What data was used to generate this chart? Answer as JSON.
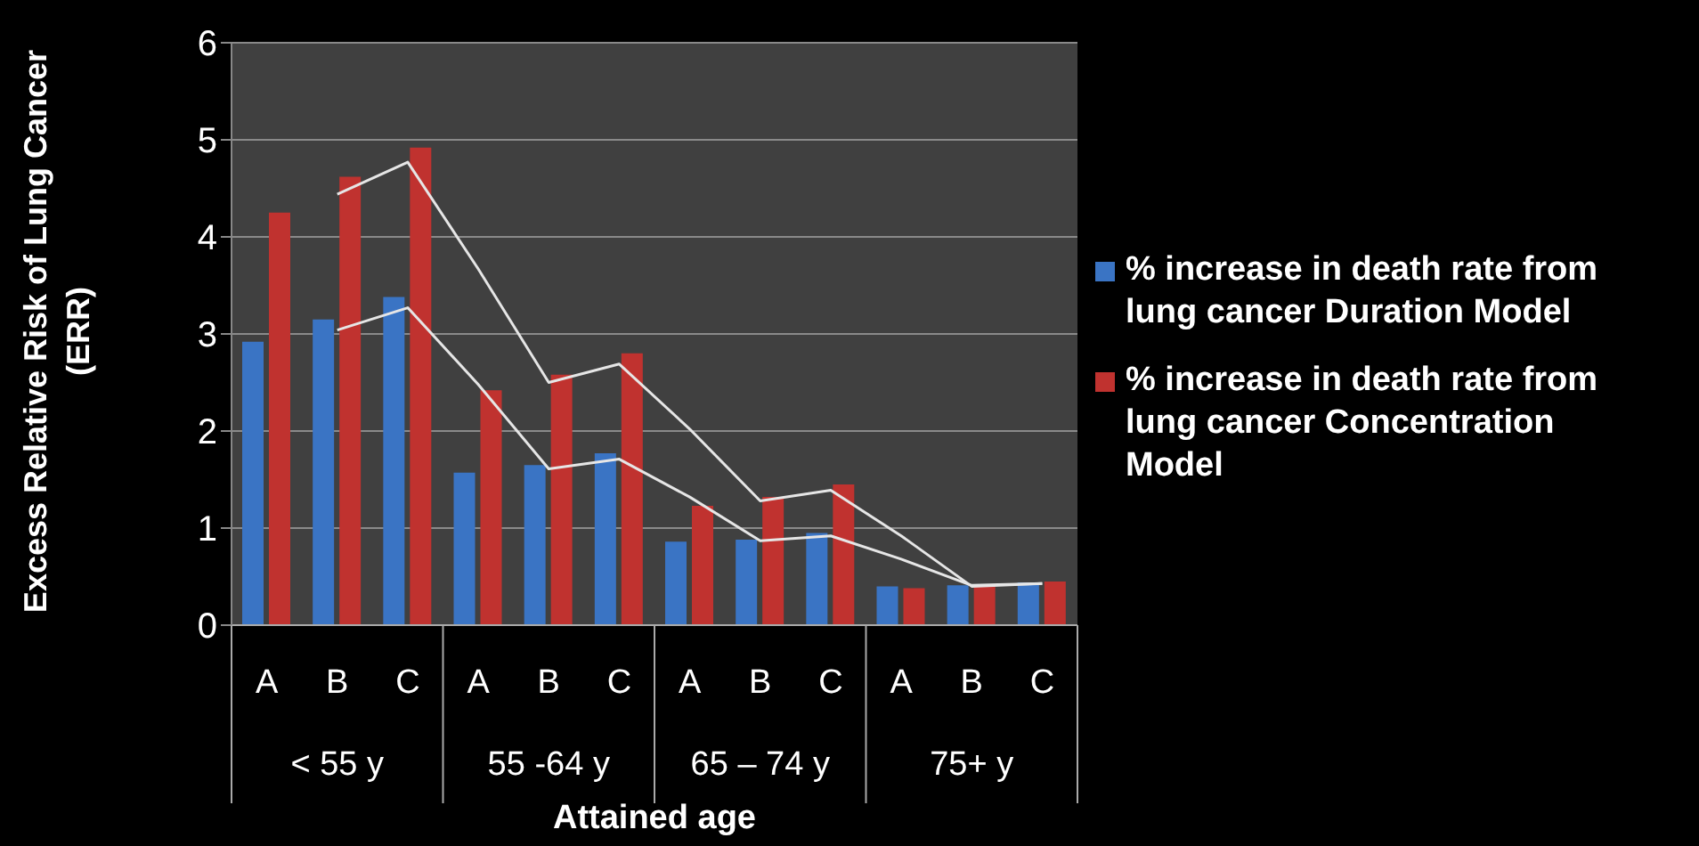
{
  "chart_data": {
    "type": "bar",
    "xlabel": "Attained age",
    "ylabel": "Excess Relative Risk of Lung Cancer (ERR)",
    "categories": [
      "A",
      "B",
      "C",
      "A",
      "B",
      "C",
      "A",
      "B",
      "C",
      "A",
      "B",
      "C"
    ],
    "annotations": [
      "< 55 y",
      "55 -64 y",
      "65 – 74 y",
      "75+ y"
    ],
    "series": [
      {
        "name": "% increase in death rate from lung cancer Duration Model",
        "color": "#3a74c4",
        "values": [
          2.92,
          3.15,
          3.38,
          1.57,
          1.65,
          1.77,
          0.86,
          0.88,
          0.95,
          0.4,
          0.41,
          0.44
        ]
      },
      {
        "name": "% increase in death rate from lung cancer Concentration Model",
        "color": "#c0322f",
        "values": [
          4.25,
          4.62,
          4.92,
          2.42,
          2.58,
          2.8,
          1.23,
          1.32,
          1.45,
          0.38,
          0.41,
          0.45
        ]
      },
      {
        "type": "line",
        "color": "#e6e6e6",
        "values": [
          null,
          3.04,
          3.27,
          2.48,
          1.61,
          1.71,
          1.32,
          0.87,
          0.92,
          0.68,
          0.41,
          0.43
        ]
      },
      {
        "type": "line",
        "color": "#e6e6e6",
        "values": [
          null,
          4.44,
          4.77,
          3.67,
          2.5,
          2.69,
          2.02,
          1.28,
          1.39,
          0.92,
          0.4,
          0.43
        ]
      }
    ],
    "ylim": [
      0,
      6
    ],
    "yticks": [
      0,
      1,
      2,
      3,
      4,
      5,
      6
    ],
    "grid": "y",
    "legend": "right"
  }
}
